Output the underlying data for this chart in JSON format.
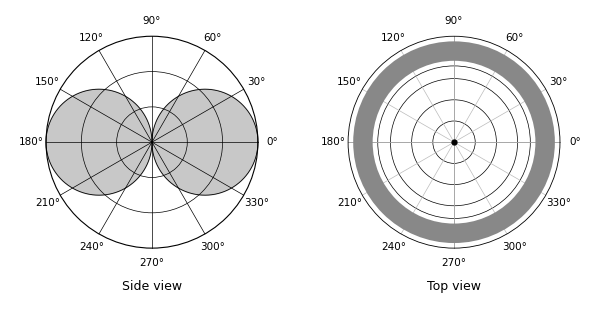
{
  "title_left": "Side view",
  "title_right": "Top view",
  "angle_labels": [
    "0°",
    "30°",
    "60°",
    "90°",
    "120°",
    "150°",
    "180°",
    "210°",
    "240°",
    "270°",
    "300°",
    "330°"
  ],
  "angle_values": [
    0,
    30,
    60,
    90,
    120,
    150,
    180,
    210,
    240,
    270,
    300,
    330
  ],
  "fill_color": "#c8c8c8",
  "outer_circle_color": "#888888",
  "outer_circle_linewidth": 14,
  "background_color": "#ffffff",
  "figsize": [
    6.06,
    3.14
  ],
  "dpi": 100,
  "label_fontsize": 7.5,
  "title_fontsize": 9
}
